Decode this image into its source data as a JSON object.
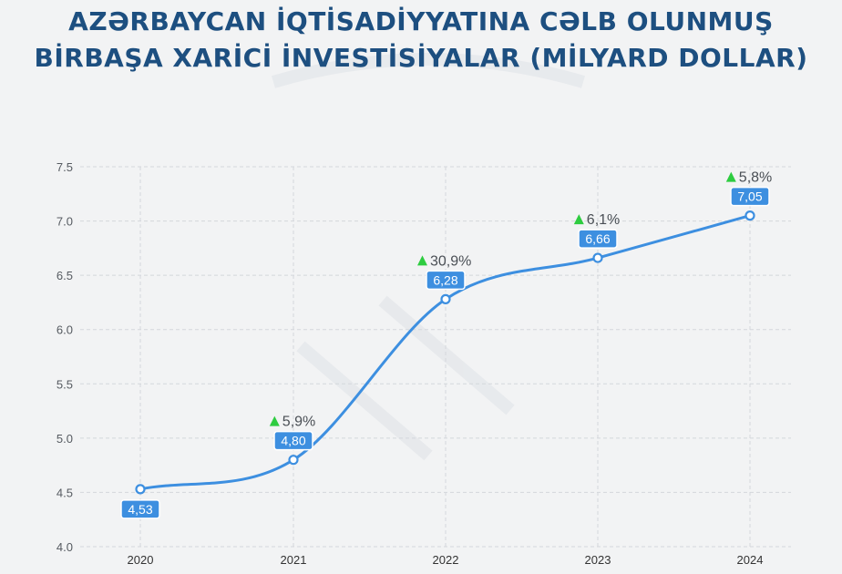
{
  "header": {
    "title_line1": "AZƏRBAYCAN İQTİSADİYYATINA CƏLB OLUNMUŞ",
    "title_line2": "BİRBAŞA XARİCİ İNVESTİSİYALAR (MİLYARD DOLLAR)"
  },
  "colors": {
    "title": "#1d4f80",
    "line": "#3d8fe0",
    "label_bg": "#3d8fe0",
    "up_arrow": "#2ecc40"
  },
  "chart_data": {
    "type": "line",
    "title": "AZƏRBAYCAN İQTİSADİYYATINA CƏLB OLUNMUŞ BİRBAŞA XARİCİ İNVESTİSİYALAR (MİLYARD DOLLAR)",
    "categories": [
      "2020",
      "2021",
      "2022",
      "2023",
      "2024"
    ],
    "series": [
      {
        "values": [
          4.53,
          4.8,
          6.28,
          6.66,
          7.05
        ],
        "value_labels": [
          "4,53",
          "4,80",
          "6,28",
          "6,66",
          "7,05"
        ],
        "growth_labels": [
          "",
          "5,9%",
          "30,9%",
          "6,1%",
          "5,8%"
        ]
      }
    ],
    "y_ticks": [
      "4.0",
      "4.5",
      "5.0",
      "5.5",
      "6.0",
      "6.5",
      "7.0",
      "7.5"
    ],
    "ylim": [
      4.0,
      7.5
    ],
    "grid": true,
    "growth_icon": "up-triangle-icon"
  }
}
